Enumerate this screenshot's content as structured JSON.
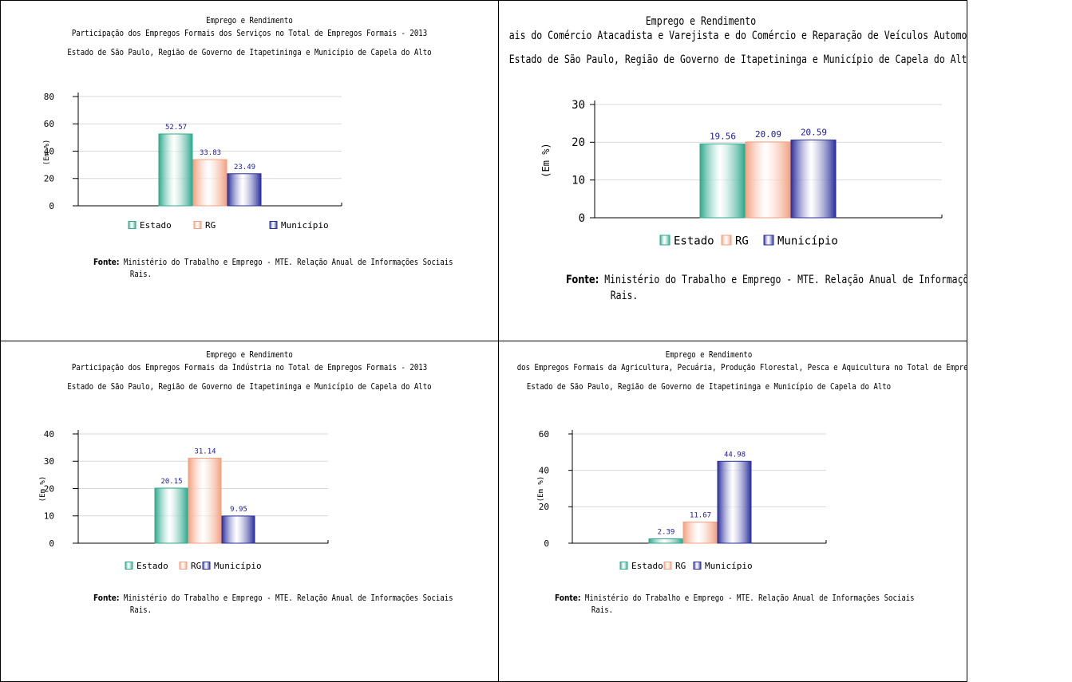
{
  "colors": {
    "estado": "#2fa98e",
    "rg": "#f2a180",
    "municipio": "#2a2f9c",
    "value_label": "#1a1a9a",
    "grid": "#d9d9d9",
    "axis": "#000000"
  },
  "common": {
    "header": "Emprego e Rendimento",
    "region": "Estado de São Paulo, Região de Governo de Itapetininga e Município de Capela do Alto",
    "fonte_label": "Fonte:",
    "fonte_line1": "Ministério do Trabalho e Emprego  -  MTE. Relação Anual de Informações Sociais",
    "fonte_line2": "Rais.",
    "ylabel": "(Em %)"
  },
  "chart_data": [
    {
      "type": "bar",
      "title": "Participação dos Empregos Formais dos Serviços no Total de Empregos Formais - 2013",
      "ylabel": "(Em %)",
      "ylim": [
        0,
        80
      ],
      "yticks": [
        0,
        20,
        40,
        60,
        80
      ],
      "grid": true,
      "legend_position": "bottom",
      "series": [
        {
          "name": "Estado",
          "values": [
            52.57
          ]
        },
        {
          "name": "RG",
          "values": [
            33.83
          ]
        },
        {
          "name": "Município",
          "values": [
            23.49
          ]
        }
      ],
      "value_labels": [
        "52.57",
        "33.83",
        "23.49"
      ]
    },
    {
      "type": "bar",
      "title": "ais do Comércio Atacadista e Varejista e do Comércio e Reparação de Veículos Automotores e Motocicletas no To",
      "ylabel": "(Em %)",
      "ylim": [
        0,
        30
      ],
      "yticks": [
        0,
        10,
        20,
        30
      ],
      "grid": true,
      "legend_position": "bottom",
      "series": [
        {
          "name": "Estado",
          "values": [
            19.56
          ]
        },
        {
          "name": "RG",
          "values": [
            20.09
          ]
        },
        {
          "name": "Município",
          "values": [
            20.59
          ]
        }
      ],
      "value_labels": [
        "19.56",
        "20.09",
        "20.59"
      ]
    },
    {
      "type": "bar",
      "title": "Participação dos Empregos Formais da Indústria no Total de Empregos Formais - 2013",
      "ylabel": "(Em %)",
      "ylim": [
        0,
        40
      ],
      "yticks": [
        0,
        10,
        20,
        30,
        40
      ],
      "grid": true,
      "legend_position": "bottom",
      "series": [
        {
          "name": "Estado",
          "values": [
            20.15
          ]
        },
        {
          "name": "RG",
          "values": [
            31.14
          ]
        },
        {
          "name": "Município",
          "values": [
            9.95
          ]
        }
      ],
      "value_labels": [
        "20.15",
        "31.14",
        "9.95"
      ]
    },
    {
      "type": "bar",
      "title": "dos Empregos Formais da Agricultura, Pecuária, Produção Florestal, Pesca e Aquicultura no Total de Empregos F",
      "ylabel": "(Em %)",
      "ylim": [
        0,
        60
      ],
      "yticks": [
        0,
        20,
        40,
        60
      ],
      "grid": true,
      "legend_position": "bottom",
      "series": [
        {
          "name": "Estado",
          "values": [
            2.39
          ]
        },
        {
          "name": "RG",
          "values": [
            11.67
          ]
        },
        {
          "name": "Município",
          "values": [
            44.98
          ]
        }
      ],
      "value_labels": [
        "2.39",
        "11.67",
        "44.98"
      ]
    }
  ]
}
